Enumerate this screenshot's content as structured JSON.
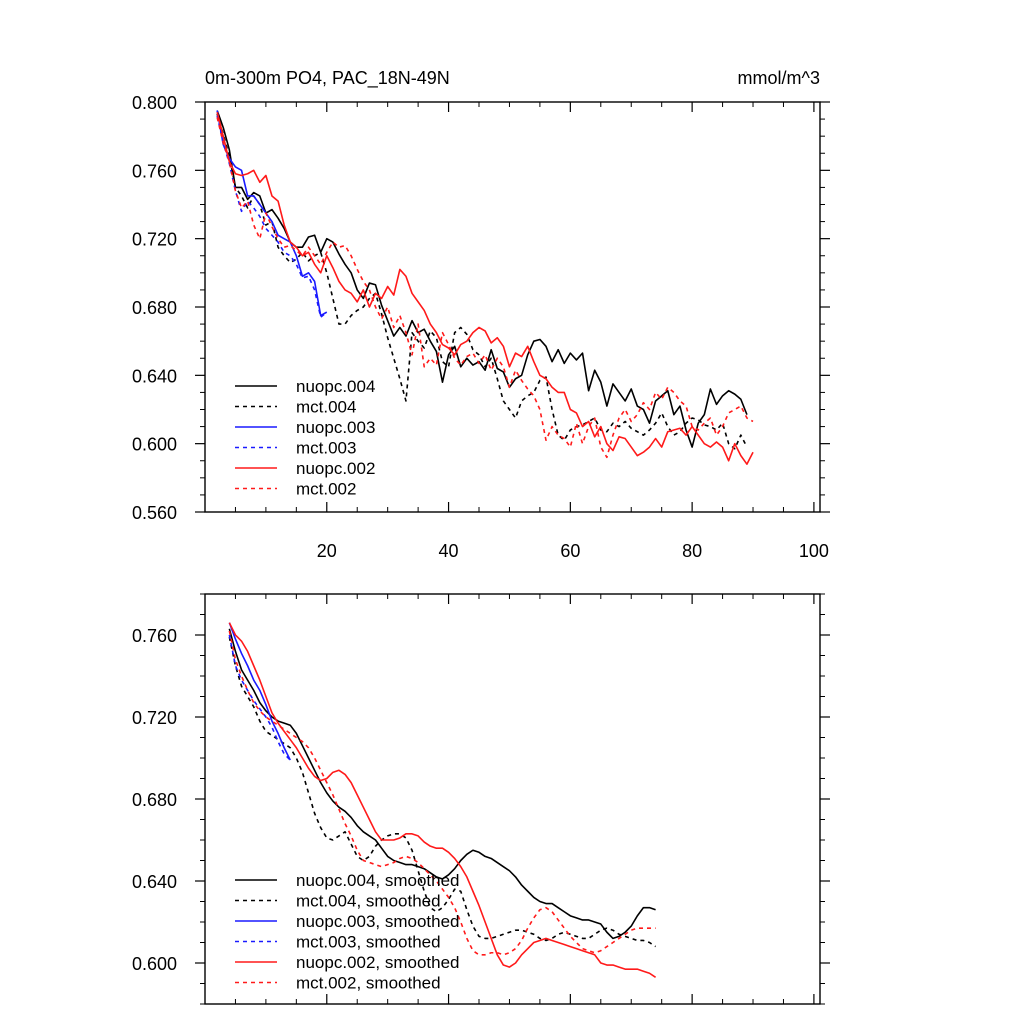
{
  "colors": {
    "nuopc.004": "#000000",
    "mct.004": "#000000",
    "nuopc.003": "#1a1aff",
    "mct.003": "#1a1aff",
    "nuopc.002": "#ff1a1a",
    "mct.002": "#ff1a1a"
  },
  "chart_data": [
    {
      "type": "line",
      "title": "0m-300m PO4, PAC_18N-49N",
      "units": "mmol/m^3",
      "xlim": [
        0,
        101
      ],
      "ylim": [
        0.56,
        0.8
      ],
      "xticks": [
        20,
        40,
        60,
        80,
        100
      ],
      "xtick_labels": [
        "20",
        "40",
        "60",
        "80",
        "100"
      ],
      "yticks": [
        0.56,
        0.6,
        0.64,
        0.68,
        0.72,
        0.76,
        0.8
      ],
      "ytick_labels": [
        "0.560",
        "0.600",
        "0.640",
        "0.680",
        "0.720",
        "0.760",
        "0.800"
      ],
      "legend": "bottom-left",
      "series": [
        {
          "name": "nuopc.004",
          "legend": "nuopc.004",
          "style": "solid",
          "x_start": 2,
          "values": [
            0.795,
            0.785,
            0.772,
            0.75,
            0.75,
            0.743,
            0.747,
            0.745,
            0.735,
            0.737,
            0.732,
            0.726,
            0.718,
            0.715,
            0.715,
            0.721,
            0.722,
            0.712,
            0.72,
            0.718,
            0.711,
            0.705,
            0.7,
            0.69,
            0.685,
            0.694,
            0.693,
            0.681,
            0.672,
            0.663,
            0.668,
            0.663,
            0.672,
            0.665,
            0.667,
            0.66,
            0.654,
            0.636,
            0.652,
            0.657,
            0.645,
            0.65,
            0.646,
            0.648,
            0.643,
            0.655,
            0.644,
            0.642,
            0.633,
            0.638,
            0.64,
            0.652,
            0.66,
            0.661,
            0.657,
            0.648,
            0.655,
            0.647,
            0.653,
            0.649,
            0.653,
            0.631,
            0.643,
            0.636,
            0.622,
            0.635,
            0.63,
            0.625,
            0.632,
            0.622,
            0.62,
            0.612,
            0.625,
            0.628,
            0.631,
            0.617,
            0.622,
            0.608,
            0.598,
            0.612,
            0.617,
            0.632,
            0.623,
            0.628,
            0.631,
            0.629,
            0.626,
            0.617
          ]
        },
        {
          "name": "mct.004",
          "legend": "mct.004",
          "style": "dashed",
          "x_start": 2,
          "values": [
            0.793,
            0.781,
            0.768,
            0.75,
            0.745,
            0.738,
            0.745,
            0.74,
            0.728,
            0.73,
            0.715,
            0.71,
            0.706,
            0.708,
            0.712,
            0.707,
            0.71,
            0.712,
            0.7,
            0.685,
            0.67,
            0.67,
            0.675,
            0.678,
            0.68,
            0.685,
            0.688,
            0.676,
            0.662,
            0.65,
            0.638,
            0.625,
            0.665,
            0.66,
            0.656,
            0.666,
            0.662,
            0.648,
            0.645,
            0.665,
            0.668,
            0.664,
            0.655,
            0.652,
            0.645,
            0.65,
            0.638,
            0.625,
            0.62,
            0.615,
            0.625,
            0.628,
            0.63,
            0.637,
            0.639,
            0.62,
            0.605,
            0.602,
            0.608,
            0.61,
            0.611,
            0.613,
            0.615,
            0.608,
            0.607,
            0.612,
            0.61,
            0.613,
            0.609,
            0.607,
            0.605,
            0.608,
            0.612,
            0.618,
            0.61,
            0.605,
            0.607,
            0.612,
            0.615,
            0.614,
            0.611,
            0.61,
            0.608,
            0.612,
            0.6,
            0.597,
            0.605,
            0.598
          ]
        },
        {
          "name": "nuopc.003",
          "legend": "nuopc.003",
          "style": "solid",
          "x_start": 2,
          "values": [
            0.795,
            0.775,
            0.767,
            0.762,
            0.76,
            0.745,
            0.745,
            0.74,
            0.735,
            0.73,
            0.722,
            0.72,
            0.718,
            0.71,
            0.698,
            0.7,
            0.695,
            0.675,
            0.677
          ]
        },
        {
          "name": "mct.003",
          "legend": "mct.003",
          "style": "dashed",
          "x_start": 2,
          "values": [
            0.792,
            0.776,
            0.764,
            0.748,
            0.736,
            0.742,
            0.738,
            0.733,
            0.726,
            0.722,
            0.718,
            0.712,
            0.71,
            0.705,
            0.697,
            0.698,
            0.69,
            0.674,
            0.677
          ]
        },
        {
          "name": "nuopc.002",
          "legend": "nuopc.002",
          "style": "solid",
          "x_start": 2,
          "values": [
            0.794,
            0.78,
            0.765,
            0.758,
            0.757,
            0.758,
            0.76,
            0.753,
            0.757,
            0.745,
            0.742,
            0.728,
            0.718,
            0.715,
            0.71,
            0.712,
            0.705,
            0.7,
            0.71,
            0.703,
            0.695,
            0.69,
            0.688,
            0.683,
            0.69,
            0.68,
            0.688,
            0.685,
            0.692,
            0.687,
            0.702,
            0.698,
            0.688,
            0.683,
            0.678,
            0.67,
            0.665,
            0.658,
            0.656,
            0.652,
            0.658,
            0.66,
            0.665,
            0.668,
            0.666,
            0.659,
            0.662,
            0.657,
            0.645,
            0.653,
            0.651,
            0.657,
            0.648,
            0.64,
            0.638,
            0.633,
            0.63,
            0.63,
            0.62,
            0.618,
            0.61,
            0.613,
            0.604,
            0.61,
            0.6,
            0.596,
            0.604,
            0.603,
            0.598,
            0.593,
            0.595,
            0.598,
            0.603,
            0.598,
            0.607,
            0.608,
            0.609,
            0.605,
            0.61,
            0.605,
            0.6,
            0.598,
            0.601,
            0.598,
            0.59,
            0.6,
            0.593,
            0.588,
            0.595
          ]
        },
        {
          "name": "mct.002",
          "legend": "mct.002",
          "style": "dashed",
          "x_start": 2,
          "values": [
            0.791,
            0.776,
            0.765,
            0.748,
            0.738,
            0.742,
            0.728,
            0.72,
            0.735,
            0.727,
            0.72,
            0.715,
            0.716,
            0.713,
            0.71,
            0.715,
            0.71,
            0.705,
            0.712,
            0.718,
            0.715,
            0.716,
            0.71,
            0.702,
            0.695,
            0.69,
            0.68,
            0.673,
            0.68,
            0.668,
            0.675,
            0.665,
            0.652,
            0.67,
            0.645,
            0.65,
            0.646,
            0.665,
            0.658,
            0.65,
            0.646,
            0.651,
            0.653,
            0.647,
            0.652,
            0.643,
            0.65,
            0.645,
            0.633,
            0.643,
            0.637,
            0.632,
            0.628,
            0.62,
            0.602,
            0.61,
            0.605,
            0.603,
            0.598,
            0.612,
            0.6,
            0.61,
            0.615,
            0.598,
            0.592,
            0.605,
            0.615,
            0.62,
            0.613,
            0.617,
            0.624,
            0.62,
            0.63,
            0.626,
            0.633,
            0.63,
            0.625,
            0.622,
            0.61,
            0.608,
            0.612,
            0.615,
            0.605,
            0.61,
            0.618,
            0.62,
            0.622,
            0.615,
            0.613
          ]
        }
      ]
    },
    {
      "type": "line",
      "xlim": [
        0,
        101
      ],
      "ylim": [
        0.58,
        0.78
      ],
      "xticks": [
        20,
        40,
        60,
        80,
        100
      ],
      "yticks": [
        0.6,
        0.64,
        0.68,
        0.72,
        0.76
      ],
      "ytick_labels": [
        "0.600",
        "0.640",
        "0.680",
        "0.720",
        "0.760"
      ],
      "legend": "bottom-left",
      "series": [
        {
          "name": "nuopc.004",
          "legend": "nuopc.004, smoothed",
          "style": "solid",
          "x_start": 4,
          "values": [
            0.763,
            0.752,
            0.743,
            0.738,
            0.733,
            0.727,
            0.723,
            0.72,
            0.718,
            0.717,
            0.716,
            0.712,
            0.706,
            0.7,
            0.694,
            0.688,
            0.683,
            0.679,
            0.676,
            0.674,
            0.671,
            0.667,
            0.664,
            0.662,
            0.66,
            0.656,
            0.652,
            0.65,
            0.649,
            0.648,
            0.648,
            0.647,
            0.646,
            0.644,
            0.642,
            0.641,
            0.643,
            0.646,
            0.65,
            0.653,
            0.655,
            0.654,
            0.652,
            0.651,
            0.649,
            0.647,
            0.645,
            0.642,
            0.638,
            0.635,
            0.632,
            0.63,
            0.629,
            0.629,
            0.627,
            0.625,
            0.623,
            0.622,
            0.621,
            0.621,
            0.62,
            0.619,
            0.615,
            0.612,
            0.613,
            0.615,
            0.618,
            0.623,
            0.627,
            0.627,
            0.626
          ]
        },
        {
          "name": "mct.004",
          "legend": "mct.004, smoothed",
          "style": "dashed",
          "x_start": 4,
          "values": [
            0.759,
            0.745,
            0.735,
            0.73,
            0.725,
            0.718,
            0.713,
            0.711,
            0.709,
            0.707,
            0.705,
            0.7,
            0.693,
            0.683,
            0.673,
            0.666,
            0.661,
            0.66,
            0.662,
            0.664,
            0.658,
            0.652,
            0.65,
            0.652,
            0.657,
            0.66,
            0.662,
            0.663,
            0.663,
            0.661,
            0.655,
            0.645,
            0.635,
            0.627,
            0.625,
            0.627,
            0.631,
            0.636,
            0.635,
            0.626,
            0.618,
            0.613,
            0.612,
            0.612,
            0.613,
            0.614,
            0.615,
            0.616,
            0.616,
            0.615,
            0.614,
            0.612,
            0.611,
            0.612,
            0.614,
            0.615,
            0.614,
            0.613,
            0.612,
            0.612,
            0.614,
            0.616,
            0.617,
            0.616,
            0.614,
            0.613,
            0.612,
            0.611,
            0.611,
            0.61,
            0.608
          ]
        },
        {
          "name": "nuopc.003",
          "legend": "nuopc.003, smoothed",
          "style": "solid",
          "x_start": 4,
          "values": [
            0.766,
            0.758,
            0.751,
            0.745,
            0.738,
            0.733,
            0.726,
            0.718,
            0.712,
            0.705,
            0.699
          ]
        },
        {
          "name": "mct.003",
          "legend": "mct.003, smoothed",
          "style": "dashed",
          "x_start": 4,
          "values": [
            0.76,
            0.745,
            0.738,
            0.733,
            0.728,
            0.724,
            0.72,
            0.715,
            0.708,
            0.702,
            0.699
          ]
        },
        {
          "name": "nuopc.002",
          "legend": "nuopc.002, smoothed",
          "style": "solid",
          "x_start": 4,
          "values": [
            0.766,
            0.76,
            0.757,
            0.752,
            0.745,
            0.738,
            0.73,
            0.722,
            0.717,
            0.713,
            0.709,
            0.705,
            0.7,
            0.695,
            0.691,
            0.689,
            0.69,
            0.693,
            0.694,
            0.692,
            0.688,
            0.682,
            0.676,
            0.67,
            0.664,
            0.66,
            0.66,
            0.66,
            0.661,
            0.663,
            0.663,
            0.662,
            0.659,
            0.657,
            0.656,
            0.656,
            0.654,
            0.651,
            0.647,
            0.642,
            0.635,
            0.628,
            0.62,
            0.612,
            0.604,
            0.599,
            0.598,
            0.6,
            0.604,
            0.607,
            0.61,
            0.611,
            0.612,
            0.611,
            0.61,
            0.609,
            0.608,
            0.607,
            0.606,
            0.605,
            0.604,
            0.6,
            0.599,
            0.599,
            0.598,
            0.597,
            0.597,
            0.597,
            0.596,
            0.595,
            0.593
          ]
        },
        {
          "name": "mct.002",
          "legend": "mct.002, smoothed",
          "style": "dashed",
          "x_start": 4,
          "values": [
            0.762,
            0.748,
            0.74,
            0.733,
            0.727,
            0.723,
            0.72,
            0.718,
            0.716,
            0.714,
            0.712,
            0.71,
            0.708,
            0.705,
            0.7,
            0.694,
            0.688,
            0.682,
            0.675,
            0.668,
            0.662,
            0.655,
            0.65,
            0.649,
            0.648,
            0.647,
            0.648,
            0.649,
            0.651,
            0.652,
            0.651,
            0.649,
            0.646,
            0.643,
            0.64,
            0.636,
            0.632,
            0.627,
            0.62,
            0.612,
            0.606,
            0.604,
            0.604,
            0.605,
            0.605,
            0.604,
            0.605,
            0.607,
            0.611,
            0.617,
            0.622,
            0.626,
            0.627,
            0.625,
            0.621,
            0.617,
            0.613,
            0.61,
            0.607,
            0.606,
            0.605,
            0.606,
            0.608,
            0.61,
            0.612,
            0.614,
            0.616,
            0.617,
            0.617,
            0.617,
            0.617
          ]
        }
      ]
    }
  ]
}
